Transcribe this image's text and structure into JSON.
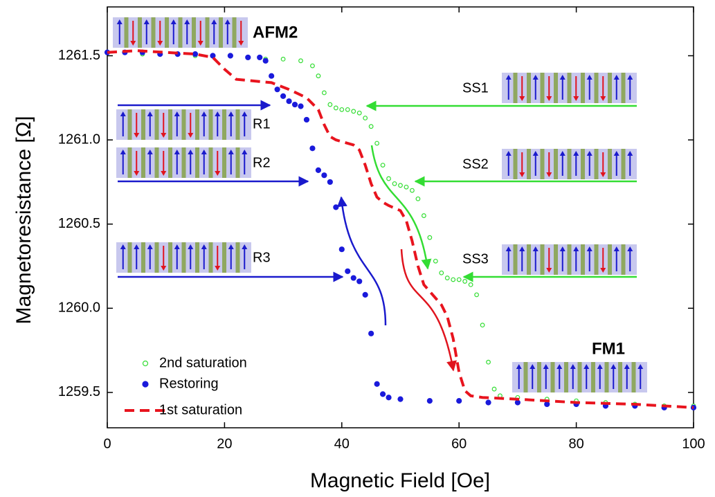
{
  "chart_data": {
    "type": "scatter",
    "xlabel": "Magnetic Field [Oe]",
    "ylabel": "Magnetoresistance [Ω]",
    "xlim": [
      0,
      100
    ],
    "xticks": [
      0,
      20,
      40,
      60,
      80,
      100
    ],
    "ylim": [
      1259.29,
      1261.79
    ],
    "yticks": [
      1259.5,
      {
        "value": 1260,
        "label": "1260.0"
      },
      1260.5,
      {
        "value": 1261,
        "label": "1261.0"
      },
      1261.5
    ],
    "legend": "lower left",
    "annotations": [
      "AFM2",
      "R1",
      "R2",
      "R3",
      "SS1",
      "SS2",
      "SS3",
      "FM1"
    ],
    "series": [
      {
        "name": "2nd saturation",
        "color": "#33dd33",
        "marker": "open-circle",
        "x": [
          0,
          3,
          6,
          9,
          12,
          15,
          18,
          21,
          24,
          27,
          30,
          33,
          35,
          36,
          37,
          38,
          39,
          40,
          41,
          42,
          43,
          44,
          45,
          46,
          47,
          48,
          49,
          50,
          51,
          52,
          53,
          54,
          55,
          56,
          57,
          58,
          59,
          60,
          61,
          62,
          63,
          64,
          65,
          66,
          67,
          70,
          75,
          80,
          85,
          90,
          95,
          100
        ],
        "values": [
          1261.52,
          1261.52,
          1261.51,
          1261.51,
          1261.51,
          1261.5,
          1261.5,
          1261.5,
          1261.49,
          1261.48,
          1261.48,
          1261.47,
          1261.44,
          1261.38,
          1261.28,
          1261.21,
          1261.19,
          1261.18,
          1261.18,
          1261.17,
          1261.16,
          1261.13,
          1261.08,
          1260.98,
          1260.85,
          1260.77,
          1260.74,
          1260.73,
          1260.72,
          1260.7,
          1260.65,
          1260.55,
          1260.42,
          1260.28,
          1260.21,
          1260.18,
          1260.17,
          1260.17,
          1260.16,
          1260.14,
          1260.08,
          1259.9,
          1259.68,
          1259.52,
          1259.48,
          1259.47,
          1259.46,
          1259.45,
          1259.44,
          1259.43,
          1259.42,
          1259.42
        ]
      },
      {
        "name": " Restoring",
        "color": "#1a1adb",
        "marker": "filled-circle",
        "x": [
          0,
          3,
          6,
          9,
          12,
          15,
          18,
          21,
          24,
          26,
          27,
          28,
          29,
          30,
          31,
          32,
          33,
          34,
          35,
          36,
          37,
          38,
          39,
          40,
          41,
          42,
          43,
          44,
          45,
          46,
          47,
          48,
          50,
          55,
          60,
          65,
          70,
          75,
          80,
          85,
          90,
          95,
          100
        ],
        "values": [
          1261.52,
          1261.52,
          1261.52,
          1261.51,
          1261.51,
          1261.51,
          1261.5,
          1261.5,
          1261.49,
          1261.49,
          1261.47,
          1261.38,
          1261.3,
          1261.26,
          1261.23,
          1261.21,
          1261.2,
          1261.12,
          1260.95,
          1260.82,
          1260.79,
          1260.75,
          1260.6,
          1260.35,
          1260.22,
          1260.18,
          1260.16,
          1260.08,
          1259.85,
          1259.55,
          1259.49,
          1259.47,
          1259.46,
          1259.45,
          1259.45,
          1259.44,
          1259.44,
          1259.43,
          1259.43,
          1259.42,
          1259.42,
          1259.41,
          1259.41
        ]
      },
      {
        "name": "1st saturation",
        "color": "#e8141e",
        "marker": "dashed-line",
        "x": [
          0,
          5,
          10,
          15,
          18,
          20,
          22,
          25,
          28,
          31,
          34,
          36,
          37,
          38,
          39,
          40,
          42,
          43,
          44,
          45,
          46,
          47,
          48,
          50,
          51,
          52,
          53,
          54,
          55,
          56,
          57,
          58,
          59,
          60,
          61,
          62,
          64,
          70,
          80,
          90,
          100
        ],
        "values": [
          1261.52,
          1261.53,
          1261.52,
          1261.51,
          1261.49,
          1261.42,
          1261.36,
          1261.35,
          1261.34,
          1261.3,
          1261.25,
          1261.18,
          1261.09,
          1261.02,
          1261.0,
          1260.99,
          1260.97,
          1260.94,
          1260.85,
          1260.74,
          1260.66,
          1260.63,
          1260.61,
          1260.58,
          1260.52,
          1260.4,
          1260.25,
          1260.14,
          1260.1,
          1260.06,
          1260.02,
          1259.95,
          1259.82,
          1259.62,
          1259.51,
          1259.48,
          1259.47,
          1259.46,
          1259.44,
          1259.43,
          1259.41
        ]
      }
    ]
  }
}
